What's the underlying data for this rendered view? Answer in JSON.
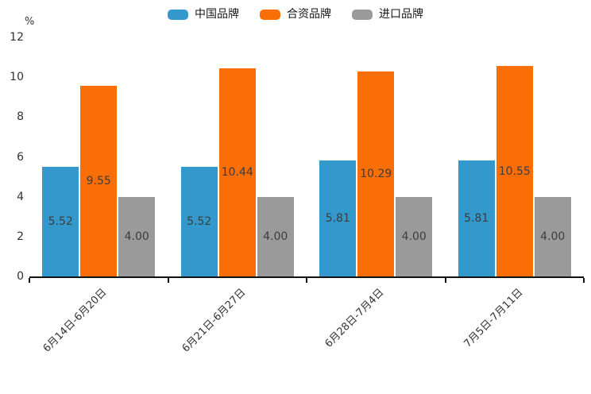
{
  "chart_data": {
    "type": "bar",
    "title": "",
    "unit_label": "%",
    "categories": [
      "6月14日-6月20日",
      "6月21日-6月27日",
      "6月28日-7月4日",
      "7月5日-7月11日"
    ],
    "series": [
      {
        "name": "中国品牌",
        "color": "#3399CC",
        "values": [
          5.52,
          5.52,
          5.81,
          5.81
        ]
      },
      {
        "name": "合资品牌",
        "color": "#FA6E08",
        "values": [
          9.55,
          10.44,
          10.29,
          10.55
        ]
      },
      {
        "name": "进口品牌",
        "color": "#9A9A9A",
        "values": [
          4.0,
          4.0,
          4.0,
          4.0
        ]
      }
    ],
    "ylim": [
      0,
      12
    ],
    "yticks": [
      0,
      2,
      4,
      6,
      8,
      10,
      12
    ],
    "value_decimals": 2,
    "legend_position": "top",
    "grid": false,
    "bar_label_position": "center",
    "axis_color": "#111111"
  }
}
